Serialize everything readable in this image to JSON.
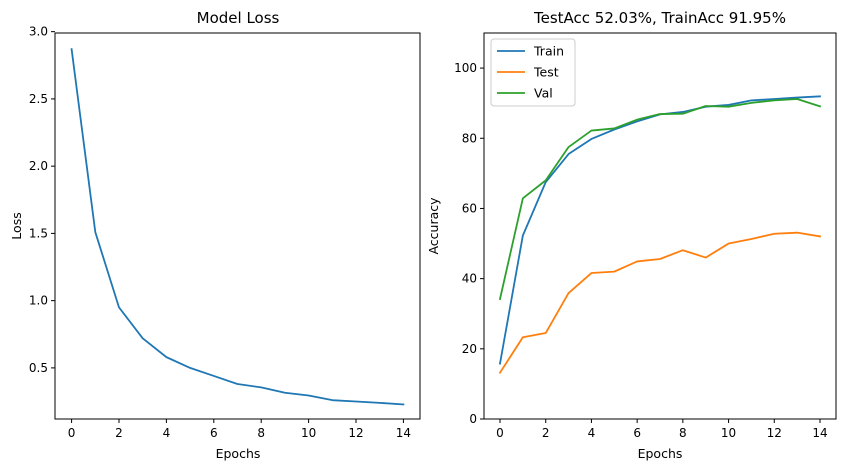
{
  "chart_data": [
    {
      "type": "line",
      "title": "Model Loss",
      "xlabel": "Epochs",
      "ylabel": "Loss",
      "xlim": [
        -0.7,
        14.7
      ],
      "ylim": [
        0.12,
        2.99
      ],
      "xticks": [
        "0",
        "2",
        "4",
        "6",
        "8",
        "10",
        "12",
        "14"
      ],
      "yticks": [
        "0.5",
        "1.0",
        "1.5",
        "2.0",
        "2.5",
        "3.0"
      ],
      "x": [
        0,
        1,
        2,
        3,
        4,
        5,
        6,
        7,
        8,
        9,
        10,
        11,
        12,
        13,
        14
      ],
      "series": [
        {
          "color": "#1f77b4",
          "values": [
            2.87,
            1.51,
            0.95,
            0.72,
            0.58,
            0.5,
            0.44,
            0.38,
            0.355,
            0.315,
            0.295,
            0.26,
            0.25,
            0.24,
            0.228
          ]
        }
      ],
      "grid": false
    },
    {
      "type": "line",
      "title": "TestAcc 52.03%, TrainAcc 91.95%",
      "xlabel": "Epochs",
      "ylabel": "Accuracy",
      "xlim": [
        -0.7,
        14.7
      ],
      "ylim": [
        0,
        110
      ],
      "xticks": [
        "0",
        "2",
        "4",
        "6",
        "8",
        "10",
        "12",
        "14"
      ],
      "yticks": [
        "0",
        "20",
        "40",
        "60",
        "80",
        "100"
      ],
      "x": [
        0,
        1,
        2,
        3,
        4,
        5,
        6,
        7,
        8,
        9,
        10,
        11,
        12,
        13,
        14
      ],
      "legend_position": "top-left",
      "series": [
        {
          "name": "Train",
          "color": "#1f77b4",
          "values": [
            15.8,
            52.3,
            67.5,
            75.5,
            79.8,
            82.5,
            84.8,
            86.8,
            87.5,
            89.0,
            89.5,
            90.8,
            91.2,
            91.6,
            91.95
          ]
        },
        {
          "name": "Test",
          "color": "#ff7f0e",
          "values": [
            13.2,
            23.3,
            24.5,
            35.9,
            41.6,
            42.0,
            44.9,
            45.6,
            48.1,
            46.0,
            50.0,
            51.3,
            52.8,
            53.1,
            52.03
          ]
        },
        {
          "name": "Val",
          "color": "#2ca02c",
          "values": [
            34.2,
            62.9,
            68.0,
            77.5,
            82.2,
            82.8,
            85.3,
            86.9,
            87.0,
            89.2,
            89.0,
            90.1,
            90.8,
            91.2,
            89.1
          ]
        }
      ],
      "grid": false
    }
  ]
}
